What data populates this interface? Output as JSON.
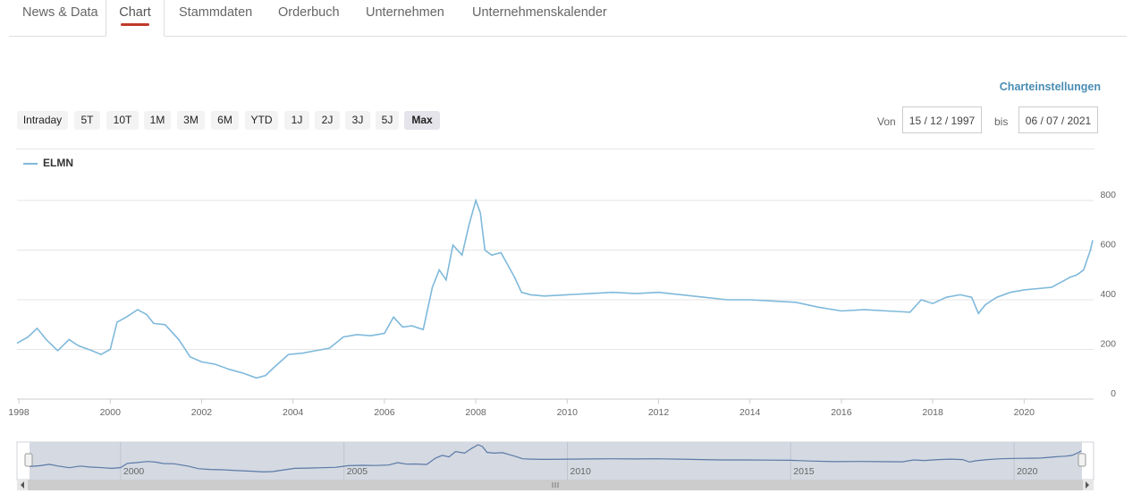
{
  "tabs": [
    "News & Data",
    "Chart",
    "Stammdaten",
    "Orderbuch",
    "Unternehmen",
    "Unternehmenskalender"
  ],
  "active_tab": "Chart",
  "settings_link": "Charteinstellungen",
  "range_buttons": [
    "Intraday",
    "5T",
    "10T",
    "1M",
    "3M",
    "6M",
    "YTD",
    "1J",
    "2J",
    "3J",
    "5J",
    "Max"
  ],
  "active_range": "Max",
  "date_range": {
    "from_label": "Von",
    "from_value": "15 / 12 / 1997",
    "to_label": "bis",
    "to_value": "06 / 07 / 2021"
  },
  "colors": {
    "line": "#7fb9db",
    "navigator_line": "#5b7aa6",
    "tab_accent": "#c0392b",
    "link": "#4a8db3"
  },
  "chart_data": {
    "type": "line",
    "legend": "top-left",
    "grid": true,
    "xlim": [
      1997.96,
      2021.52
    ],
    "ylim": [
      0,
      800
    ],
    "x_ticks": [
      1998,
      2000,
      2002,
      2004,
      2006,
      2008,
      2010,
      2012,
      2014,
      2016,
      2018,
      2020
    ],
    "y_ticks": [
      0,
      200,
      400,
      600,
      800
    ],
    "series": [
      {
        "name": "ELMN",
        "x": [
          1997.96,
          1998.2,
          1998.4,
          1998.6,
          1998.85,
          1999.1,
          1999.3,
          1999.6,
          1999.8,
          2000.0,
          2000.15,
          2000.35,
          2000.6,
          2000.8,
          2000.95,
          2001.2,
          2001.5,
          2001.75,
          2002.0,
          2002.3,
          2002.6,
          2002.9,
          2003.2,
          2003.4,
          2003.6,
          2003.9,
          2004.2,
          2004.5,
          2004.8,
          2005.1,
          2005.4,
          2005.7,
          2006.0,
          2006.2,
          2006.4,
          2006.6,
          2006.85,
          2007.05,
          2007.2,
          2007.35,
          2007.5,
          2007.7,
          2007.85,
          2008.0,
          2008.1,
          2008.2,
          2008.35,
          2008.55,
          2008.7,
          2008.85,
          2009.0,
          2009.2,
          2009.5,
          2010.0,
          2010.5,
          2011.0,
          2011.5,
          2012.0,
          2012.5,
          2013.0,
          2013.5,
          2014.0,
          2014.5,
          2015.0,
          2015.5,
          2016.0,
          2016.5,
          2017.0,
          2017.5,
          2017.75,
          2018.0,
          2018.3,
          2018.6,
          2018.85,
          2019.0,
          2019.15,
          2019.4,
          2019.7,
          2020.0,
          2020.3,
          2020.6,
          2020.9,
          2021.0,
          2021.15,
          2021.3,
          2021.45,
          2021.5
        ],
        "values": [
          225,
          250,
          285,
          240,
          195,
          240,
          215,
          195,
          180,
          200,
          310,
          330,
          360,
          340,
          305,
          300,
          240,
          170,
          150,
          140,
          120,
          105,
          85,
          95,
          130,
          180,
          185,
          195,
          205,
          250,
          260,
          255,
          265,
          330,
          290,
          295,
          280,
          450,
          520,
          480,
          620,
          580,
          700,
          800,
          750,
          600,
          580,
          590,
          540,
          490,
          430,
          420,
          415,
          420,
          425,
          430,
          425,
          430,
          420,
          410,
          400,
          400,
          395,
          390,
          370,
          355,
          360,
          355,
          350,
          400,
          385,
          410,
          420,
          410,
          345,
          380,
          410,
          430,
          440,
          445,
          450,
          480,
          490,
          500,
          520,
          600,
          640
        ]
      }
    ],
    "navigator": {
      "x_ticks": [
        2000,
        2005,
        2010,
        2015,
        2020
      ]
    }
  }
}
